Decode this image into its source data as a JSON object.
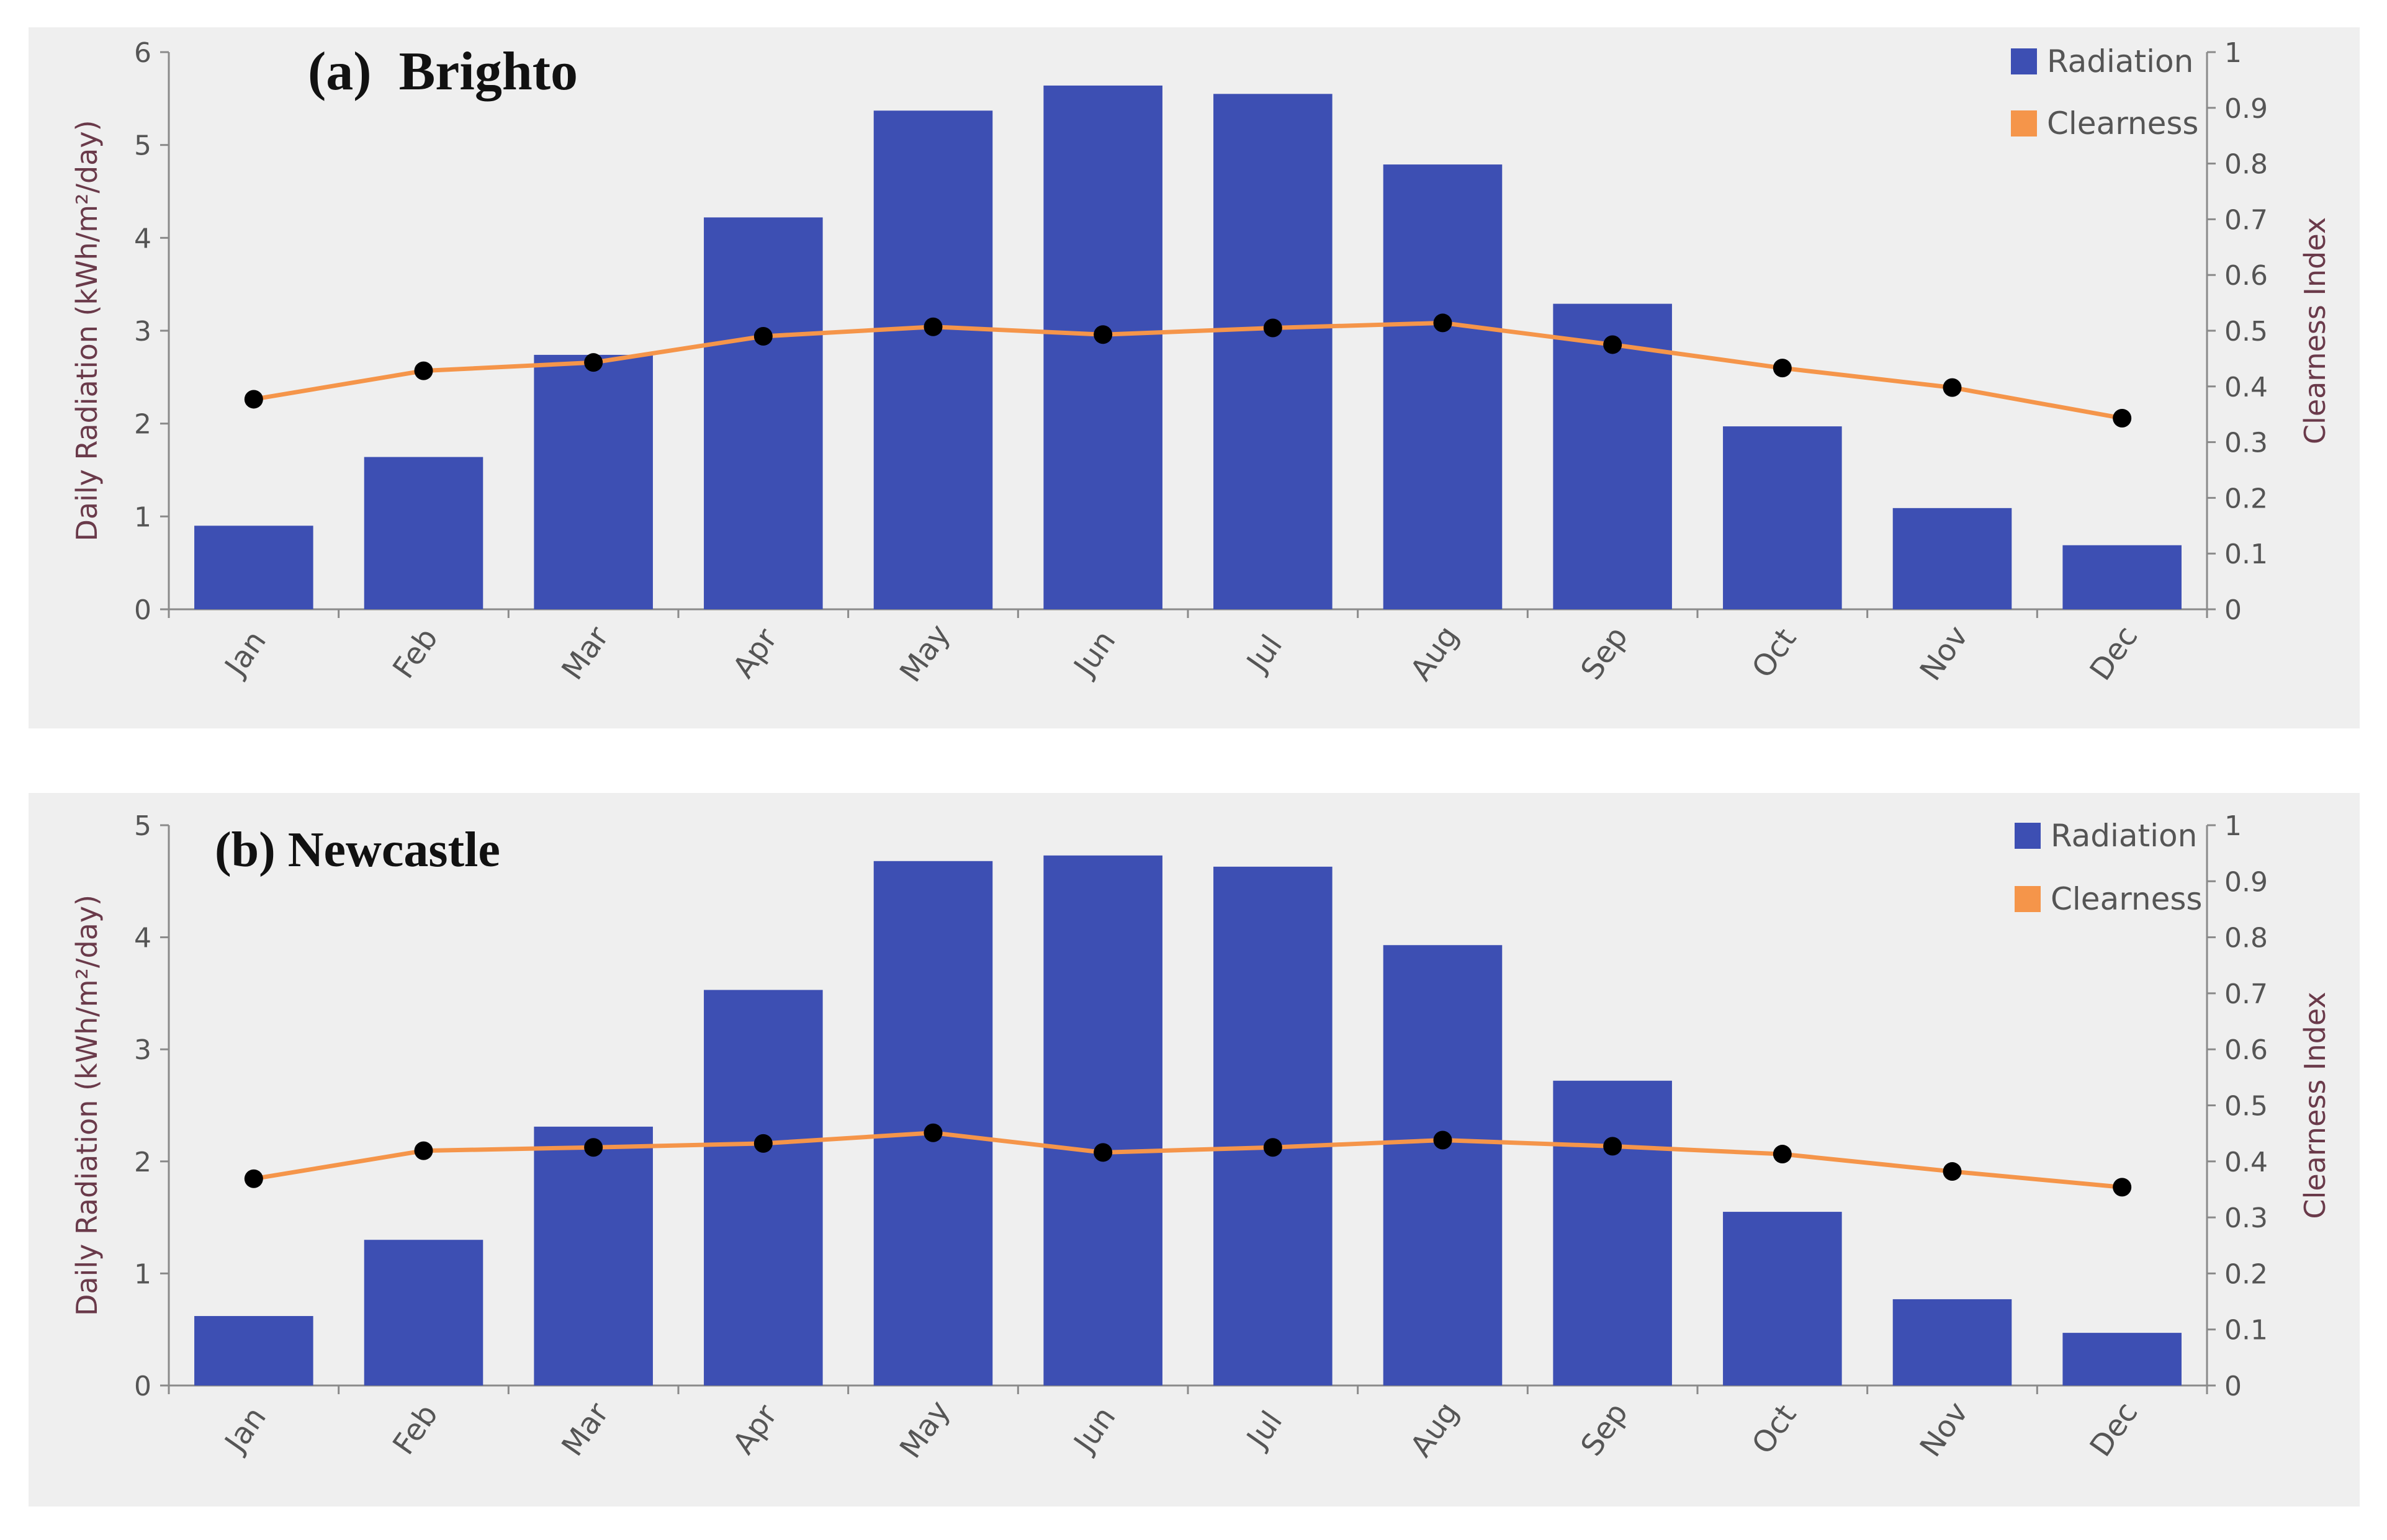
{
  "chart_data": [
    {
      "type": "bar",
      "title": "(a)  Brighto",
      "categories": [
        "Jan",
        "Feb",
        "Mar",
        "Apr",
        "May",
        "Jun",
        "Jul",
        "Aug",
        "Sep",
        "Oct",
        "Nov",
        "Dec"
      ],
      "series": [
        {
          "name": "Radiation",
          "axis": "left",
          "color": "#3d4fb3",
          "values": [
            0.9,
            1.64,
            2.74,
            4.22,
            5.37,
            5.64,
            5.55,
            4.79,
            3.29,
            1.97,
            1.09,
            0.69
          ]
        },
        {
          "name": "Clearness",
          "axis": "right",
          "type": "line",
          "color": "#f5954a",
          "values": [
            0.377,
            0.428,
            0.443,
            0.49,
            0.507,
            0.493,
            0.505,
            0.514,
            0.475,
            0.433,
            0.398,
            0.343
          ]
        }
      ],
      "ylabel": "Daily Radiation (kWh/m²/day)",
      "ylabel_right": "Clearness Index",
      "ylim": [
        0,
        6
      ],
      "ylim_right": [
        0,
        1
      ],
      "yticks": [
        "0",
        "1",
        "2",
        "3",
        "4",
        "5",
        "6"
      ],
      "yticks_right": [
        "0",
        "0.1",
        "0.2",
        "0.3",
        "0.4",
        "0.5",
        "0.6",
        "0.7",
        "0.8",
        "0.9",
        "1"
      ],
      "legend": [
        "Radiation",
        "Clearness"
      ],
      "legend_position": "top-right"
    },
    {
      "type": "bar",
      "title": "(b) Newcastle",
      "categories": [
        "Jan",
        "Feb",
        "Mar",
        "Apr",
        "May",
        "Jun",
        "Jul",
        "Aug",
        "Sep",
        "Oct",
        "Nov",
        "Dec"
      ],
      "series": [
        {
          "name": "Radiation",
          "axis": "left",
          "color": "#3d4fb3",
          "values": [
            0.62,
            1.3,
            2.31,
            3.53,
            4.68,
            4.73,
            4.63,
            3.93,
            2.72,
            1.55,
            0.77,
            0.47
          ]
        },
        {
          "name": "Clearness",
          "axis": "right",
          "type": "line",
          "color": "#f5954a",
          "values": [
            0.369,
            0.419,
            0.425,
            0.432,
            0.451,
            0.416,
            0.425,
            0.438,
            0.427,
            0.413,
            0.382,
            0.354
          ]
        }
      ],
      "ylabel": "Daily Radiation (kWh/m²/day)",
      "ylabel_right": "Clearness Index",
      "ylim": [
        0,
        5
      ],
      "ylim_right": [
        0,
        1
      ],
      "yticks": [
        "0",
        "1",
        "2",
        "3",
        "4",
        "5"
      ],
      "yticks_right": [
        "0",
        "0.1",
        "0.2",
        "0.3",
        "0.4",
        "0.5",
        "0.6",
        "0.7",
        "0.8",
        "0.9",
        "1"
      ],
      "legend": [
        "Radiation",
        "Clearness"
      ],
      "legend_position": "top-right"
    }
  ]
}
